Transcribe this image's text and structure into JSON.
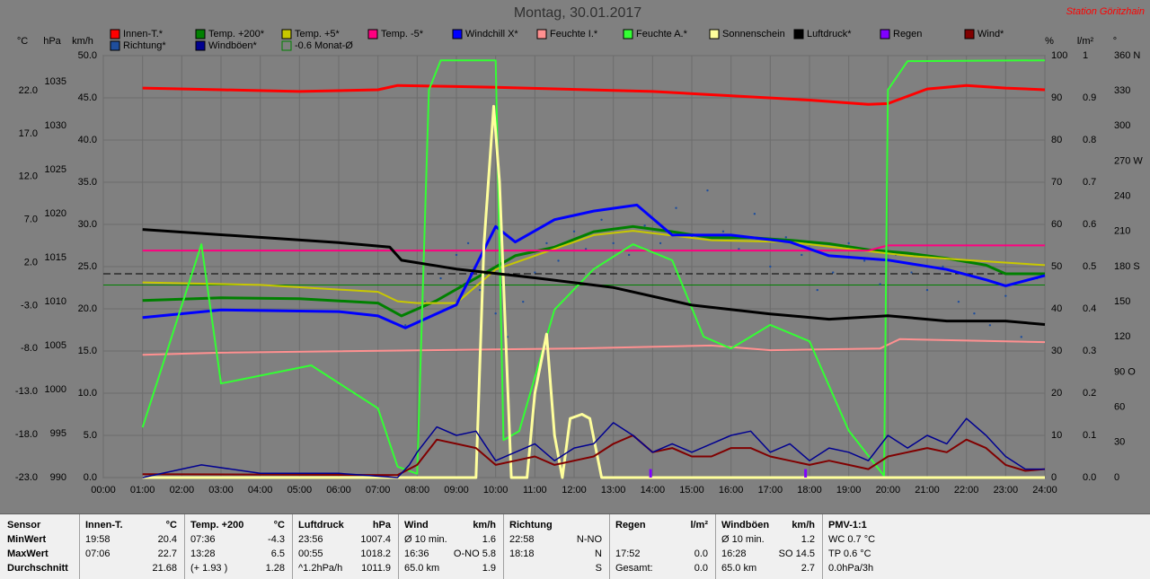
{
  "chart_data": {
    "type": "line",
    "title": "Montag, 30.01.2017",
    "station": "Station Göritzhain",
    "xlim": [
      0,
      24
    ],
    "xticks": [
      {
        "value": 0,
        "label": "00:00"
      },
      {
        "value": 1,
        "label": "01:00"
      },
      {
        "value": 2,
        "label": "02:00"
      },
      {
        "value": 3,
        "label": "03:00"
      },
      {
        "value": 4,
        "label": "04:00"
      },
      {
        "value": 5,
        "label": "05:00"
      },
      {
        "value": 6,
        "label": "06:00"
      },
      {
        "value": 7,
        "label": "07:00"
      },
      {
        "value": 8,
        "label": "08:00"
      },
      {
        "value": 9,
        "label": "09:00"
      },
      {
        "value": 10,
        "label": "10:00"
      },
      {
        "value": 11,
        "label": "11:00"
      },
      {
        "value": 12,
        "label": "12:00"
      },
      {
        "value": 13,
        "label": "13:00"
      },
      {
        "value": 14,
        "label": "14:00"
      },
      {
        "value": 15,
        "label": "15:00"
      },
      {
        "value": 16,
        "label": "16:00"
      },
      {
        "value": 17,
        "label": "17:00"
      },
      {
        "value": 18,
        "label": "18:00"
      },
      {
        "value": 19,
        "label": "19:00"
      },
      {
        "value": 20,
        "label": "20:00"
      },
      {
        "value": 21,
        "label": "21:00"
      },
      {
        "value": 22,
        "label": "22:00"
      },
      {
        "value": 23,
        "label": "23:00"
      },
      {
        "value": 24,
        "label": "24:00"
      }
    ],
    "grid": true,
    "axes": {
      "temp": {
        "label": "°C",
        "lim": [
          -23,
          26.07
        ],
        "ticks": [
          {
            "value": -23,
            "label": "-23.0"
          },
          {
            "value": -18,
            "label": "-18.0"
          },
          {
            "value": -13,
            "label": "-13.0"
          },
          {
            "value": -8,
            "label": "-8.0"
          },
          {
            "value": -3,
            "label": "-3.0"
          },
          {
            "value": 2,
            "label": "2.0"
          },
          {
            "value": 7,
            "label": "7.0"
          },
          {
            "value": 12,
            "label": "12.0"
          },
          {
            "value": 17,
            "label": "17.0"
          },
          {
            "value": 22,
            "label": "22.0"
          }
        ]
      },
      "hpa": {
        "label": "hPa",
        "lim": [
          990,
          1037.96
        ],
        "ticks": [
          990,
          995,
          1000,
          1005,
          1010,
          1015,
          1020,
          1025,
          1030,
          1035
        ]
      },
      "kmh": {
        "label": "km/h",
        "lim": [
          0,
          50
        ],
        "ticks": [
          {
            "value": 0,
            "label": "0.0"
          },
          {
            "value": 5,
            "label": "5.0"
          },
          {
            "value": 10,
            "label": "10.0"
          },
          {
            "value": 15,
            "label": "15.0"
          },
          {
            "value": 20,
            "label": "20.0"
          },
          {
            "value": 25,
            "label": "25.0"
          },
          {
            "value": 30,
            "label": "30.0"
          },
          {
            "value": 35,
            "label": "35.0"
          },
          {
            "value": 40,
            "label": "40.0"
          },
          {
            "value": 45,
            "label": "45.0"
          },
          {
            "value": 50,
            "label": "50.0"
          }
        ]
      },
      "pct": {
        "label": "%",
        "lim": [
          0,
          100
        ],
        "ticks": [
          0,
          10,
          20,
          30,
          40,
          50,
          60,
          70,
          80,
          90,
          100
        ]
      },
      "lm2": {
        "label": "l/m²",
        "lim": [
          0,
          1
        ],
        "ticks": [
          {
            "value": 0,
            "label": "0.0"
          },
          0.1,
          0.2,
          0.3,
          0.4,
          0.5,
          0.6,
          0.7,
          0.8,
          0.9,
          1
        ]
      },
      "deg": {
        "label": "°",
        "lim": [
          0,
          360
        ],
        "ticks": [
          0,
          30,
          60,
          {
            "value": 90,
            "label": "90 O"
          },
          120,
          150,
          {
            "value": 180,
            "label": "180 S"
          },
          210,
          240,
          {
            "value": 270,
            "label": "270 W"
          },
          300,
          330,
          {
            "value": 360,
            "label": "360 N"
          }
        ]
      }
    },
    "series": [
      {
        "name": "Innen-T.*",
        "color": "#ff0000",
        "axis": "temp",
        "kind": "line",
        "width": 3,
        "x": [
          1,
          3,
          5,
          7,
          7.5,
          10,
          14,
          18,
          19.5,
          20,
          21,
          22,
          23,
          24
        ],
        "values": [
          22.3,
          22.1,
          21.9,
          22.1,
          22.6,
          22.4,
          21.9,
          20.9,
          20.4,
          20.5,
          22.2,
          22.6,
          22.3,
          22.1
        ]
      },
      {
        "name": "Temp. +200*",
        "color": "#008000",
        "axis": "temp",
        "kind": "line",
        "width": 3,
        "x": [
          1,
          3,
          5,
          7,
          7.6,
          8.5,
          9.5,
          10.5,
          11.5,
          12.5,
          13.5,
          14.5,
          15.5,
          16.5,
          17.5,
          18.5,
          19.5,
          20.5,
          21.5,
          22.5,
          23,
          24
        ],
        "values": [
          -2.4,
          -2.1,
          -2.2,
          -2.7,
          -4.2,
          -2.4,
          0.2,
          2.8,
          3.8,
          5.6,
          6.2,
          5.6,
          4.9,
          4.9,
          4.6,
          4.2,
          3.5,
          3.1,
          2.5,
          1.7,
          0.7,
          0.7
        ]
      },
      {
        "name": "Temp. +5*",
        "color": "#c8c800",
        "axis": "temp",
        "kind": "line",
        "width": 2,
        "x": [
          1,
          4,
          7,
          7.5,
          8,
          9,
          10,
          11,
          12.5,
          13.5,
          15.5,
          17.5,
          20.5,
          22,
          24
        ],
        "values": [
          -0.3,
          -0.6,
          -1.4,
          -2.5,
          -2.7,
          -2.7,
          1.2,
          2.8,
          5.2,
          5.7,
          4.6,
          4.4,
          2.8,
          2.3,
          1.7
        ]
      },
      {
        "name": "Temp. -5*",
        "color": "#ff0080",
        "axis": "temp",
        "kind": "line",
        "width": 2,
        "x": [
          1,
          19.5,
          20,
          24
        ],
        "values": [
          3.4,
          3.4,
          4.0,
          4.0
        ]
      },
      {
        "name": "Windchill X*",
        "color": "#0000ff",
        "axis": "temp",
        "kind": "line",
        "width": 3,
        "x": [
          1,
          3,
          6,
          7,
          7.7,
          9,
          10,
          10.5,
          11.5,
          12.5,
          13.6,
          14.5,
          16,
          17.5,
          18.5,
          20,
          21.5,
          22.5,
          23,
          24
        ],
        "values": [
          -4.4,
          -3.5,
          -3.7,
          -4.2,
          -5.6,
          -2.9,
          6.2,
          4.4,
          7.0,
          8.0,
          8.7,
          5.2,
          5.2,
          4.4,
          2.8,
          2.3,
          1.2,
          0.0,
          -0.7,
          0.5
        ]
      },
      {
        "name": "Feuchte I.*",
        "color": "#ff9090",
        "axis": "pct",
        "kind": "line",
        "width": 2,
        "x": [
          1,
          3,
          12,
          15.5,
          17,
          19.8,
          20.3,
          24
        ],
        "values": [
          29.1,
          29.6,
          30.6,
          31.3,
          30.2,
          30.6,
          32.8,
          32.1
        ]
      },
      {
        "name": "Feuchte A.*",
        "color": "#33ff33",
        "axis": "pct",
        "kind": "line",
        "width": 2,
        "x": [
          1,
          2.5,
          3,
          5.3,
          7,
          7.5,
          8,
          8.3,
          8.6,
          10,
          10.2,
          10.6,
          11.5,
          12.5,
          13.5,
          14.5,
          15.3,
          16,
          17,
          18,
          19,
          19.9,
          20,
          20.5,
          24
        ],
        "values": [
          11.9,
          55.3,
          22.3,
          26.6,
          16.4,
          2.6,
          0.9,
          91.9,
          98.9,
          98.9,
          8.9,
          11,
          39.8,
          49.4,
          55.3,
          51.5,
          33.4,
          30.6,
          36.2,
          32.3,
          11.1,
          0.4,
          91.9,
          98.7,
          98.9
        ]
      },
      {
        "name": "Sonnenschein",
        "color": "#ffff9c",
        "axis": "pct",
        "kind": "line",
        "width": 3,
        "x": [
          1,
          8.3,
          9.5,
          9.7,
          9.95,
          10.1,
          10.4,
          10.8,
          11,
          11.3,
          11.5,
          11.7,
          11.9,
          12.2,
          12.4,
          12.7,
          13,
          24
        ],
        "values": [
          0,
          0,
          0,
          55,
          88,
          70,
          0,
          0,
          20,
          34,
          10,
          0,
          14,
          15,
          14,
          0,
          0,
          0
        ]
      },
      {
        "name": "Luftdruck*",
        "color": "#000000",
        "axis": "hpa",
        "kind": "line",
        "width": 3,
        "x": [
          1,
          6,
          7.3,
          7.6,
          9,
          11,
          13,
          15,
          17,
          18.5,
          20,
          21.5,
          23,
          24
        ],
        "values": [
          1018.2,
          1016.7,
          1016.2,
          1014.7,
          1013.7,
          1012.7,
          1011.6,
          1009.6,
          1008.6,
          1008,
          1008.4,
          1007.8,
          1007.8,
          1007.4
        ]
      },
      {
        "name": "Regen",
        "color": "#8000ff",
        "axis": "lm2",
        "kind": "bar",
        "x": [
          13.95,
          17.9
        ],
        "values": [
          0.02,
          0.02
        ]
      },
      {
        "name": "Wind*",
        "color": "#800000",
        "axis": "kmh",
        "kind": "line",
        "width": 2,
        "x": [
          1,
          7.5,
          8,
          8.5,
          9,
          9.5,
          10,
          10.5,
          11,
          11.5,
          12,
          12.5,
          13,
          13.5,
          14,
          14.5,
          15,
          15.5,
          16,
          16.5,
          17,
          17.5,
          18,
          18.5,
          19,
          19.5,
          20,
          20.5,
          21,
          21.5,
          22,
          22.5,
          23,
          23.5,
          24
        ],
        "values": [
          0.4,
          0.3,
          1.5,
          4.5,
          4,
          3.5,
          1.5,
          2,
          2.5,
          1.5,
          2,
          2.5,
          4,
          5,
          3,
          3.5,
          2.5,
          2.5,
          3.5,
          3.5,
          2.5,
          2,
          1.5,
          2,
          1.5,
          1,
          2.5,
          3,
          3.5,
          3,
          4.5,
          3.5,
          1.5,
          0.8,
          1
        ]
      },
      {
        "name": "Richtung*",
        "color": "#1f4e9c",
        "axis": "deg",
        "kind": "scatter",
        "x": [
          7.7,
          8.2,
          8.6,
          9,
          9.3,
          9.6,
          10,
          10.3,
          10.7,
          11,
          11.3,
          11.6,
          12,
          12.3,
          12.7,
          13,
          13.4,
          13.8,
          14.2,
          14.6,
          15,
          15.4,
          15.8,
          16.2,
          16.6,
          17,
          17.4,
          17.8,
          18.2,
          18.6,
          19,
          19.4,
          19.8,
          20.2,
          20.6,
          21,
          21.4,
          21.8,
          22.2,
          22.6,
          23,
          23.4,
          23.8
        ],
        "values": [
          130,
          150,
          170,
          190,
          200,
          160,
          140,
          120,
          150,
          175,
          200,
          185,
          210,
          195,
          220,
          200,
          190,
          215,
          200,
          230,
          205,
          245,
          210,
          195,
          225,
          180,
          205,
          190,
          160,
          175,
          200,
          185,
          165,
          190,
          175,
          160,
          180,
          150,
          140,
          130,
          155,
          120,
          170
        ]
      },
      {
        "name": "Windböen*",
        "color": "#000090",
        "axis": "kmh",
        "kind": "line",
        "width": 1.5,
        "x": [
          1,
          2.5,
          4,
          6,
          7.5,
          7.8,
          8,
          8.5,
          9,
          9.5,
          10,
          10.5,
          11,
          11.5,
          12,
          12.5,
          13,
          13.5,
          14,
          14.5,
          15,
          15.5,
          16,
          16.5,
          17,
          17.5,
          18,
          18.5,
          19,
          19.5,
          20,
          20.5,
          21,
          21.5,
          22,
          22.5,
          23,
          23.5,
          24
        ],
        "values": [
          0,
          1.5,
          0.5,
          0.5,
          0,
          1.5,
          3,
          6,
          5,
          5.5,
          2,
          3,
          4,
          2,
          3.5,
          4,
          6.5,
          5,
          3,
          4,
          3,
          4,
          5,
          5.5,
          3,
          4,
          2,
          3.5,
          3,
          2,
          5,
          3.5,
          5,
          4,
          7,
          5,
          2.5,
          1,
          1
        ]
      },
      {
        "name": "-0.6 Monat-Ø",
        "color": "#008000",
        "axis": "temp",
        "kind": "hline",
        "outline": true,
        "values": [
          -0.6
        ]
      }
    ],
    "ref_lines": [
      {
        "axis": "temp",
        "value": 0.7,
        "color": "#000000"
      }
    ]
  },
  "table": {
    "row_labels": [
      "Sensor",
      "MinWert",
      "MaxWert",
      "Durchschnitt"
    ],
    "columns": [
      {
        "title": "Innen-T.",
        "unit": "°C",
        "rows": [
          {
            "left": "19:58",
            "right": "20.4"
          },
          {
            "left": "07:06",
            "right": "22.7"
          },
          {
            "right": "21.68"
          }
        ]
      },
      {
        "title": "Temp. +200",
        "unit": "°C",
        "rows": [
          {
            "left": "07:36",
            "right": "-4.3"
          },
          {
            "left": "13:28",
            "right": "6.5"
          },
          {
            "left": "(+ 1.93 )",
            "right": "1.28"
          }
        ]
      },
      {
        "title": "Luftdruck",
        "unit": "hPa",
        "rows": [
          {
            "left": "23:56",
            "right": "1007.4"
          },
          {
            "left": "00:55",
            "right": "1018.2"
          },
          {
            "left": "^1.2hPa/h",
            "right": "1011.9"
          }
        ]
      },
      {
        "title": "Wind",
        "unit": "km/h",
        "rows": [
          {
            "left": "Ø 10 min.",
            "right": "1.6"
          },
          {
            "left": "16:36",
            "right": "O-NO 5.8"
          },
          {
            "left": "65.0 km",
            "right": "1.9"
          }
        ]
      },
      {
        "title": "Richtung",
        "rows": [
          {
            "left": "22:58",
            "right": "N-NO"
          },
          {
            "left": "18:18",
            "right": "N"
          },
          {
            "right": "S"
          }
        ]
      },
      {
        "title": "Regen",
        "unit": "l/m²",
        "rows": [
          {},
          {
            "left": "17:52",
            "right": "0.0"
          },
          {
            "left": "Gesamt:",
            "right": "0.0"
          }
        ]
      },
      {
        "title": "Windböen",
        "unit": "km/h",
        "rows": [
          {
            "left": "Ø 10 min.",
            "right": "1.2"
          },
          {
            "left": "16:28",
            "right": "SO 14.5"
          },
          {
            "left": "65.0 km",
            "right": "2.7"
          }
        ]
      },
      {
        "title": "PMV-1:1",
        "rows": [
          {
            "left": "WC 0.7 °C"
          },
          {
            "left": "TP 0.6 °C"
          },
          {
            "left": "0.0hPa/3h"
          }
        ]
      }
    ]
  }
}
